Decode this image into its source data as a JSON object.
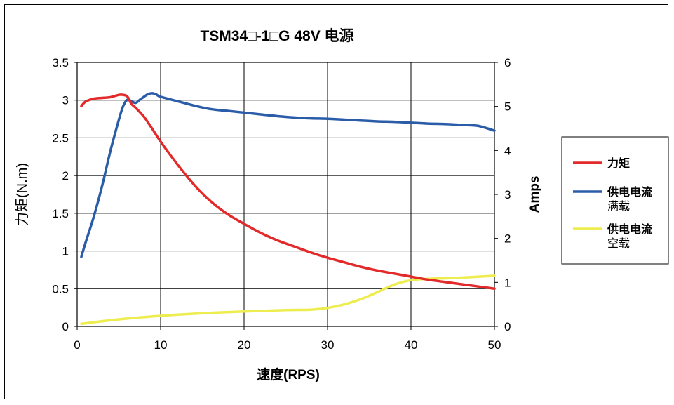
{
  "chart_data": {
    "type": "line",
    "title": "TSM34□-1□G 48V 电源",
    "xlabel": "速度(RPS)",
    "ylabel_left": "力矩(N.m)",
    "ylabel_right": "Amps",
    "xlim": [
      0,
      50
    ],
    "ylim_left": [
      0,
      3.5
    ],
    "ylim_right": [
      0,
      6
    ],
    "x_ticks": [
      "0",
      "10",
      "20",
      "30",
      "40",
      "50"
    ],
    "y_left_ticks": [
      "0",
      "0.5",
      "1",
      "1.5",
      "2",
      "2.5",
      "3",
      "3.5"
    ],
    "y_right_ticks": [
      "0",
      "1",
      "2",
      "3",
      "4",
      "5",
      "6"
    ],
    "grid": true,
    "legend_position": "right",
    "series": [
      {
        "name": "力矩",
        "axis": "left",
        "color": "#e32a2a",
        "x": [
          0.5,
          1,
          2,
          3,
          4,
          5,
          5.5,
          6,
          6.5,
          7,
          8,
          9,
          10,
          12,
          14,
          16,
          18,
          20,
          22,
          24,
          26,
          28,
          30,
          32,
          34,
          36,
          38,
          40,
          42,
          44,
          46,
          48,
          50
        ],
        "y": [
          2.92,
          2.98,
          3.02,
          3.03,
          3.04,
          3.07,
          3.07,
          3.05,
          2.95,
          2.9,
          2.78,
          2.62,
          2.45,
          2.15,
          1.88,
          1.66,
          1.49,
          1.36,
          1.24,
          1.14,
          1.06,
          0.98,
          0.91,
          0.85,
          0.79,
          0.74,
          0.7,
          0.66,
          0.62,
          0.59,
          0.56,
          0.53,
          0.5
        ]
      },
      {
        "name": "供电电流 满载",
        "label_line1": "供电电流",
        "label_line2": "满载",
        "axis": "right",
        "color": "#2b5ca8",
        "x": [
          0.5,
          1,
          2,
          3,
          4,
          5,
          5.5,
          6,
          6.5,
          7,
          7.5,
          8,
          8.5,
          9,
          9.5,
          10,
          12,
          14,
          16,
          18,
          20,
          22,
          24,
          26,
          28,
          30,
          32,
          34,
          36,
          38,
          40,
          42,
          44,
          46,
          48,
          50
        ],
        "y": [
          1.58,
          1.9,
          2.5,
          3.2,
          4.0,
          4.7,
          5.0,
          5.15,
          5.12,
          5.08,
          5.15,
          5.22,
          5.28,
          5.3,
          5.27,
          5.22,
          5.12,
          5.02,
          4.94,
          4.9,
          4.86,
          4.82,
          4.78,
          4.75,
          4.73,
          4.72,
          4.7,
          4.68,
          4.66,
          4.65,
          4.63,
          4.61,
          4.6,
          4.58,
          4.56,
          4.45
        ]
      },
      {
        "name": "供电电流 空载",
        "label_line1": "供电电流",
        "label_line2": "空载",
        "axis": "right",
        "color": "#eded4f",
        "x": [
          0.5,
          5,
          10,
          15,
          20,
          25,
          28,
          30,
          32,
          34,
          36,
          38,
          40,
          42,
          45,
          50
        ],
        "y": [
          0.06,
          0.16,
          0.24,
          0.3,
          0.34,
          0.37,
          0.38,
          0.42,
          0.5,
          0.62,
          0.78,
          0.95,
          1.05,
          1.08,
          1.1,
          1.15
        ]
      }
    ]
  }
}
